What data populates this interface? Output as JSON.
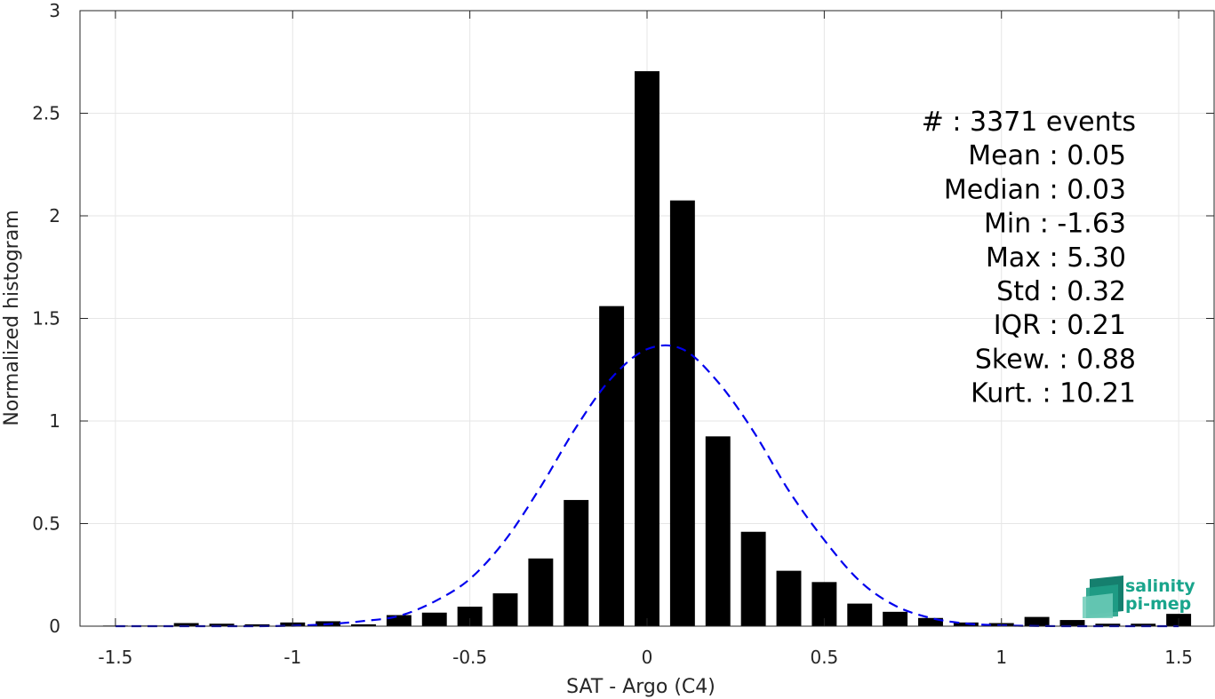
{
  "chart_data": {
    "type": "bar",
    "xlabel": "SAT - Argo (C4)",
    "ylabel": "Normalized histogram",
    "xlim": [
      -1.6,
      1.6
    ],
    "ylim": [
      0,
      3
    ],
    "grid": true,
    "x_ticks": [
      -1.5,
      -1,
      -0.5,
      0,
      0.5,
      1,
      1.5
    ],
    "x_tick_labels": [
      "-1.5",
      "-1",
      "-0.5",
      "0",
      "0.5",
      "1",
      "1.5"
    ],
    "y_ticks": [
      0,
      0.5,
      1,
      1.5,
      2,
      2.5,
      3
    ],
    "y_tick_labels": [
      "0",
      "0.5",
      "1",
      "1.5",
      "2",
      "2.5",
      "3"
    ],
    "bar_width": 0.07,
    "x": [
      -1.5,
      -1.4,
      -1.3,
      -1.2,
      -1.1,
      -1.0,
      -0.9,
      -0.8,
      -0.7,
      -0.6,
      -0.5,
      -0.4,
      -0.3,
      -0.2,
      -0.1,
      0.0,
      0.1,
      0.2,
      0.3,
      0.4,
      0.5,
      0.6,
      0.7,
      0.8,
      0.9,
      1.0,
      1.1,
      1.2,
      1.3,
      1.4,
      1.5
    ],
    "values": [
      0.003,
      0.003,
      0.015,
      0.012,
      0.009,
      0.018,
      0.024,
      0.009,
      0.054,
      0.066,
      0.095,
      0.16,
      0.33,
      0.615,
      1.56,
      2.705,
      2.075,
      0.925,
      0.46,
      0.27,
      0.215,
      0.11,
      0.07,
      0.04,
      0.018,
      0.015,
      0.045,
      0.03,
      0.012,
      0.012,
      0.06
    ],
    "bar_color": "#000000",
    "fit_curve": {
      "style": "dashed",
      "color": "#0000ee",
      "mean": 0.05,
      "std": 0.295,
      "x": [
        -1.5,
        -1.4,
        -1.3,
        -1.2,
        -1.1,
        -1.0,
        -0.9,
        -0.8,
        -0.7,
        -0.6,
        -0.5,
        -0.4,
        -0.3,
        -0.2,
        -0.1,
        0.0,
        0.1,
        0.2,
        0.3,
        0.4,
        0.5,
        0.6,
        0.7,
        0.8,
        0.9,
        1.0,
        1.1,
        1.2,
        1.3,
        1.4,
        1.5
      ],
      "values": [
        0.0,
        0.0,
        0.0,
        0.0,
        0.0,
        0.002,
        0.01,
        0.025,
        0.05,
        0.12,
        0.23,
        0.42,
        0.68,
        0.97,
        1.21,
        1.35,
        1.35,
        1.19,
        0.95,
        0.66,
        0.42,
        0.22,
        0.1,
        0.04,
        0.013,
        0.004,
        0.001,
        0.0,
        0.0,
        0.0,
        0.0
      ]
    },
    "stats_lines": [
      "#  : 3371 events",
      "Mean : 0.05",
      "Median : 0.03",
      "Min : -1.63",
      "Max : 5.30",
      "Std : 0.32",
      "IQR : 0.21",
      "Skew. : 0.88",
      "Kurt. : 10.21"
    ],
    "stats_align": "right"
  },
  "logo": {
    "line1": "salinity",
    "line2": "pi-mep",
    "color": "#1aa58c"
  }
}
